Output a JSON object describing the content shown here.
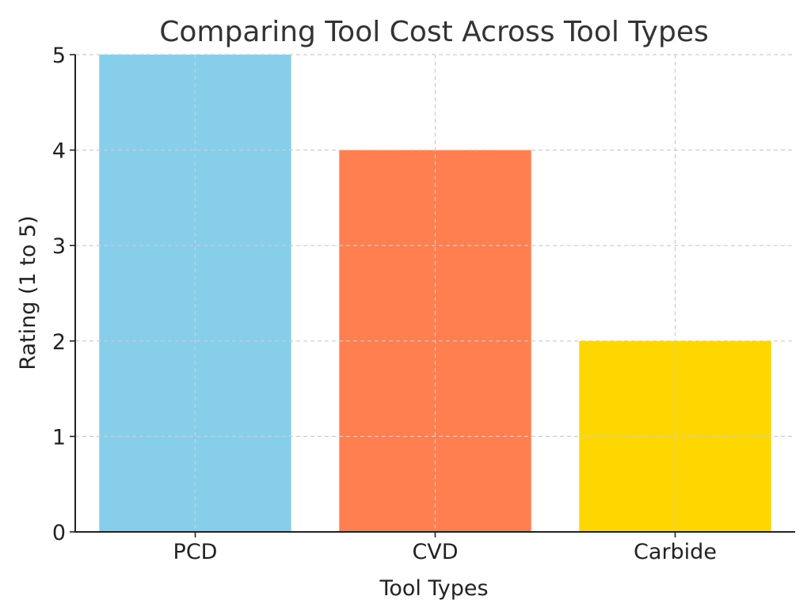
{
  "chart_data": {
    "type": "bar",
    "title": "Comparing Tool Cost Across Tool Types",
    "xlabel": "Tool Types",
    "ylabel": "Rating (1 to 5)",
    "categories": [
      "PCD",
      "CVD",
      "Carbide"
    ],
    "values": [
      5,
      4,
      2
    ],
    "colors": [
      "#87CEEB",
      "#FF7F50",
      "#FFD700"
    ],
    "ylim": [
      0,
      5
    ],
    "yticks": [
      "0",
      "1",
      "2",
      "3",
      "4",
      "5"
    ],
    "grid": true
  }
}
